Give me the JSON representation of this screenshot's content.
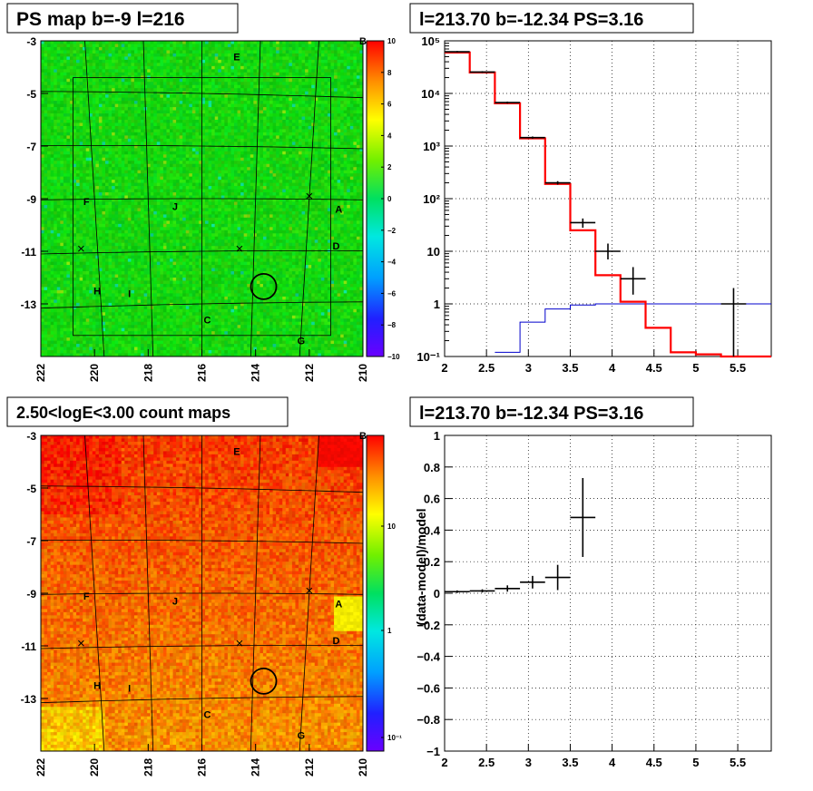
{
  "panels": {
    "ps_map": {
      "title": "PS map b=-9 l=216",
      "x_ticks": [
        "222",
        "220",
        "218",
        "216",
        "214",
        "212",
        "210"
      ],
      "y_ticks": [
        "-3",
        "-5",
        "-7",
        "-9",
        "-11",
        "-13"
      ],
      "colorbar_ticks": [
        "10",
        "8",
        "6",
        "4",
        "2",
        "0",
        "−2",
        "−4",
        "−6",
        "−8",
        "−10"
      ],
      "labels": [
        {
          "t": "B",
          "l": 210.0,
          "b": -3.0
        },
        {
          "t": "E",
          "l": 214.7,
          "b": -3.6
        },
        {
          "t": "F",
          "l": 220.3,
          "b": -9.1
        },
        {
          "t": "J",
          "l": 217.0,
          "b": -9.3
        },
        {
          "t": "A",
          "l": 210.9,
          "b": -9.4
        },
        {
          "t": "D",
          "l": 211.0,
          "b": -10.8
        },
        {
          "t": "H",
          "l": 219.9,
          "b": -12.5
        },
        {
          "t": "I",
          "l": 218.7,
          "b": -12.6
        },
        {
          "t": "C",
          "l": 215.8,
          "b": -13.6
        },
        {
          "t": "G",
          "l": 212.3,
          "b": -14.4
        }
      ]
    },
    "spectrum": {
      "title": "l=213.70 b=-12.34 PS=3.16",
      "x_ticks": [
        "2",
        "2.5",
        "3",
        "3.5",
        "4",
        "4.5",
        "5",
        "5.5"
      ],
      "y_ticks": [
        "10⁻¹",
        "1",
        "10",
        "10²",
        "10³",
        "10⁴",
        "10⁵"
      ]
    },
    "count_map": {
      "title": "2.50<logE<3.00 count maps",
      "x_ticks": [
        "222",
        "220",
        "218",
        "216",
        "214",
        "212",
        "210"
      ],
      "y_ticks": [
        "-3",
        "-5",
        "-7",
        "-9",
        "-11",
        "-13"
      ],
      "colorbar_ticks": [
        "10",
        "1",
        "10⁻¹"
      ]
    },
    "residual": {
      "title": "l=213.70 b=-12.34 PS=3.16",
      "ylabel": "(data-model)/model",
      "x_ticks": [
        "2",
        "2.5",
        "3",
        "3.5",
        "4",
        "4.5",
        "5",
        "5.5"
      ],
      "y_ticks": [
        "1",
        "0.8",
        "0.6",
        "0.4",
        "0.2",
        "0",
        "−0.2",
        "−0.4",
        "−0.6",
        "−0.8",
        "−1"
      ]
    }
  },
  "chart_data": [
    {
      "type": "heatmap",
      "title": "PS map b=-9 l=216",
      "xlim": [
        222,
        210
      ],
      "ylim": [
        -15,
        -3
      ],
      "zlim": [
        -10,
        10
      ],
      "circle": {
        "l": 213.7,
        "b": -12.34
      },
      "crosses": [
        {
          "l": 212.0,
          "b": -8.9
        },
        {
          "l": 220.5,
          "b": -10.9
        },
        {
          "l": 214.6,
          "b": -10.9
        }
      ]
    },
    {
      "type": "line",
      "title": "l=213.70 b=-12.34 PS=3.16",
      "log_y": true,
      "xlim": [
        2.0,
        5.9
      ],
      "ylim": [
        0.1,
        100000
      ],
      "model_red": {
        "edges": [
          2.0,
          2.3,
          2.6,
          2.9,
          3.2,
          3.5,
          3.8,
          4.1,
          4.4,
          4.7,
          5.0,
          5.3,
          5.6,
          5.9
        ],
        "values": [
          60000,
          25000,
          6500,
          1400,
          190,
          25,
          3.5,
          1.1,
          0.35,
          0.12,
          0.11,
          0.1,
          0.1
        ]
      },
      "model_blue": {
        "edges": [
          2.6,
          2.9,
          3.2,
          3.5,
          3.8,
          4.1,
          4.4,
          4.7,
          5.0,
          5.3,
          5.6,
          5.9
        ],
        "values": [
          0.12,
          0.45,
          0.8,
          0.95,
          1.0,
          1.0,
          1.0,
          1.0,
          1.0,
          1.0,
          1.0
        ]
      },
      "data": [
        {
          "x": 2.15,
          "xe": 0.15,
          "y": 62000,
          "lo": 60000,
          "hi": 64000
        },
        {
          "x": 2.45,
          "xe": 0.15,
          "y": 25500,
          "lo": 24500,
          "hi": 26500
        },
        {
          "x": 2.75,
          "xe": 0.15,
          "y": 6700,
          "lo": 6400,
          "hi": 7000
        },
        {
          "x": 3.05,
          "xe": 0.15,
          "y": 1450,
          "lo": 1380,
          "hi": 1520
        },
        {
          "x": 3.35,
          "xe": 0.15,
          "y": 200,
          "lo": 185,
          "hi": 215
        },
        {
          "x": 3.65,
          "xe": 0.15,
          "y": 35,
          "lo": 28,
          "hi": 42
        },
        {
          "x": 3.95,
          "xe": 0.15,
          "y": 10,
          "lo": 7,
          "hi": 14
        },
        {
          "x": 4.25,
          "xe": 0.15,
          "y": 3,
          "lo": 1.5,
          "hi": 5
        },
        {
          "x": 5.45,
          "xe": 0.15,
          "y": 1,
          "lo": 0.1,
          "hi": 2
        }
      ]
    },
    {
      "type": "heatmap",
      "title": "2.50<logE<3.00 count maps",
      "xlim": [
        222,
        210
      ],
      "ylim": [
        -15,
        -3
      ],
      "log_z": true,
      "zlim": [
        0.07,
        30
      ]
    },
    {
      "type": "scatter",
      "title": "l=213.70 b=-12.34 PS=3.16",
      "ylabel": "(data-model)/model",
      "xlim": [
        2.0,
        5.9
      ],
      "ylim": [
        -1,
        1
      ],
      "points": [
        {
          "x": 2.15,
          "xe": 0.15,
          "y": 0.01,
          "ye": 0.008
        },
        {
          "x": 2.45,
          "xe": 0.15,
          "y": 0.015,
          "ye": 0.01
        },
        {
          "x": 2.75,
          "xe": 0.15,
          "y": 0.03,
          "ye": 0.02
        },
        {
          "x": 3.05,
          "xe": 0.15,
          "y": 0.07,
          "ye": 0.04
        },
        {
          "x": 3.35,
          "xe": 0.15,
          "y": 0.1,
          "ye": 0.08
        },
        {
          "x": 3.65,
          "xe": 0.15,
          "y": 0.48,
          "ye": 0.25
        }
      ]
    }
  ],
  "colors": {
    "red": "#ff0000",
    "blue": "#0000cc",
    "grid": "#000000"
  }
}
